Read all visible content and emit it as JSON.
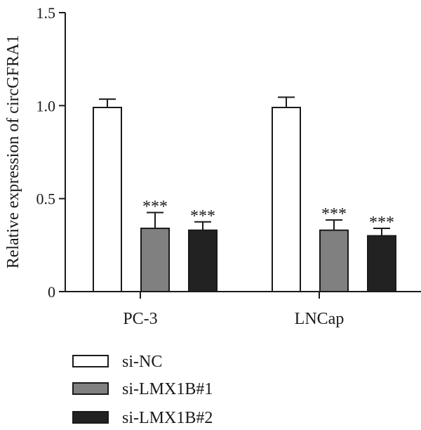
{
  "chart_data": {
    "type": "bar",
    "title": "",
    "xlabel": "",
    "ylabel": "Relative expression of circGFRA1",
    "ylim": [
      0,
      1.5
    ],
    "yticks": [
      "0",
      "0.5",
      "1.0",
      "1.5"
    ],
    "ytick_values": [
      0,
      0.5,
      1.0,
      1.5
    ],
    "categories": [
      "PC-3",
      "LNCap"
    ],
    "grid": false,
    "legend_position": "bottom-left",
    "series": [
      {
        "name": "si-NC",
        "color": "#ffffff",
        "values": [
          0.99,
          0.99
        ],
        "errors": [
          0.045,
          0.055
        ],
        "significance": [
          "",
          ""
        ]
      },
      {
        "name": "si-LMX1B#1",
        "color": "#808080",
        "values": [
          0.34,
          0.33
        ],
        "errors": [
          0.085,
          0.055
        ],
        "significance": [
          "***",
          "***"
        ]
      },
      {
        "name": "si-LMX1B#2",
        "color": "#222222",
        "values": [
          0.33,
          0.3
        ],
        "errors": [
          0.045,
          0.04
        ],
        "significance": [
          "***",
          "***"
        ]
      }
    ]
  }
}
